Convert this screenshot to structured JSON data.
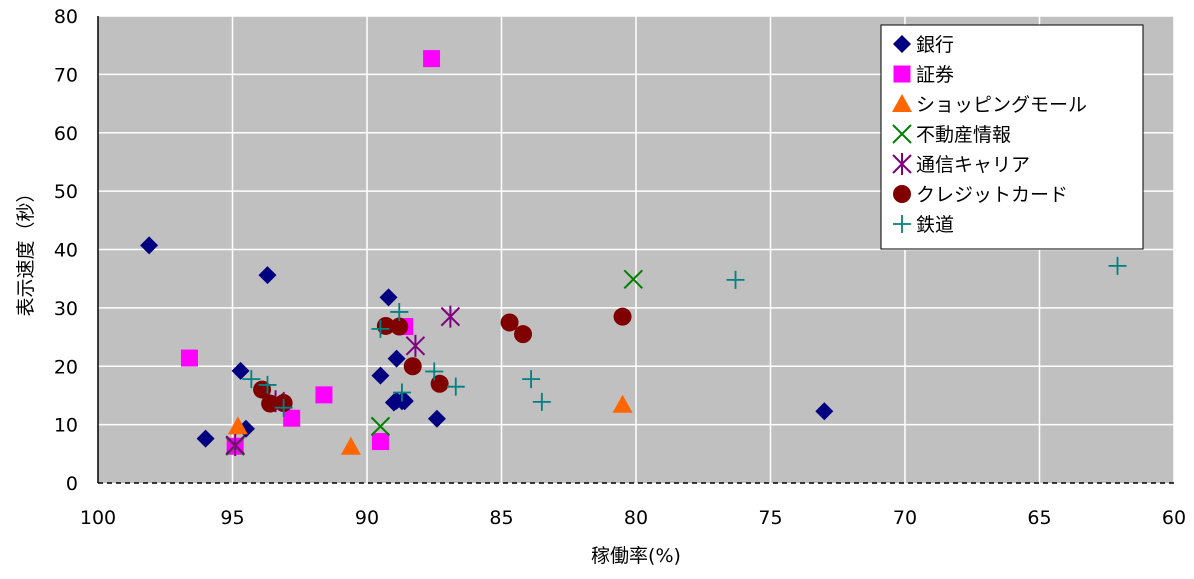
{
  "chart_data": {
    "type": "scatter",
    "xlabel": "稼働率(%)",
    "ylabel": "表示速度（秒）",
    "x_reversed": true,
    "xlim": [
      100,
      60
    ],
    "ylim": [
      0,
      80
    ],
    "x_ticks": [
      100,
      95,
      90,
      85,
      80,
      75,
      70,
      65,
      60
    ],
    "y_ticks": [
      0,
      10,
      20,
      30,
      40,
      50,
      60,
      70,
      80
    ],
    "grid": true,
    "plot_background": "#c0c0c0",
    "legend_position": "top-right",
    "series": [
      {
        "name": "銀行",
        "marker": "diamond",
        "color": "#000080",
        "points": [
          [
            98.1,
            40.7
          ],
          [
            93.7,
            35.6
          ],
          [
            89.2,
            31.8
          ],
          [
            96.0,
            7.6
          ],
          [
            94.7,
            19.2
          ],
          [
            94.5,
            9.3
          ],
          [
            88.9,
            21.3
          ],
          [
            89.5,
            18.4
          ],
          [
            88.9,
            14.1
          ],
          [
            88.6,
            14.1
          ],
          [
            88.7,
            14.0
          ],
          [
            89.0,
            13.8
          ],
          [
            88.6,
            14.0
          ],
          [
            87.4,
            11.0
          ],
          [
            73.0,
            12.3
          ]
        ]
      },
      {
        "name": "証券",
        "marker": "square",
        "color": "#ff00ff",
        "points": [
          [
            87.6,
            72.7
          ],
          [
            96.6,
            21.4
          ],
          [
            88.6,
            26.8
          ],
          [
            91.6,
            15.1
          ],
          [
            92.8,
            11.1
          ],
          [
            89.5,
            7.1
          ],
          [
            94.9,
            6.3
          ]
        ]
      },
      {
        "name": "ショッピングモール",
        "marker": "triangle",
        "color": "#ff6600",
        "points": [
          [
            94.8,
            9.7
          ],
          [
            90.6,
            6.2
          ],
          [
            80.5,
            13.4
          ]
        ]
      },
      {
        "name": "不動産情報",
        "marker": "x",
        "color": "#008000",
        "points": [
          [
            80.1,
            34.9
          ],
          [
            89.5,
            9.7
          ],
          [
            94.9,
            6.3
          ]
        ]
      },
      {
        "name": "通信キャリア",
        "marker": "star",
        "color": "#800080",
        "points": [
          [
            86.9,
            28.5
          ],
          [
            88.2,
            23.5
          ],
          [
            93.4,
            14.0
          ],
          [
            94.9,
            6.5
          ]
        ]
      },
      {
        "name": "クレジットカード",
        "marker": "circle",
        "color": "#800000",
        "points": [
          [
            88.8,
            26.8
          ],
          [
            89.3,
            26.9
          ],
          [
            84.7,
            27.5
          ],
          [
            84.2,
            25.5
          ],
          [
            80.5,
            28.5
          ],
          [
            88.3,
            20.0
          ],
          [
            87.3,
            17.0
          ],
          [
            93.9,
            16.0
          ],
          [
            93.6,
            13.6
          ],
          [
            93.1,
            13.7
          ]
        ]
      },
      {
        "name": "鉄道",
        "marker": "plus",
        "color": "#008080",
        "points": [
          [
            62.1,
            37.2
          ],
          [
            76.3,
            34.8
          ],
          [
            88.8,
            29.3
          ],
          [
            89.5,
            26.4
          ],
          [
            88.7,
            15.5
          ],
          [
            87.5,
            19.1
          ],
          [
            86.7,
            16.5
          ],
          [
            83.9,
            17.8
          ],
          [
            83.5,
            13.9
          ],
          [
            94.3,
            17.8
          ],
          [
            93.7,
            16.8
          ],
          [
            93.1,
            12.9
          ]
        ]
      }
    ]
  }
}
